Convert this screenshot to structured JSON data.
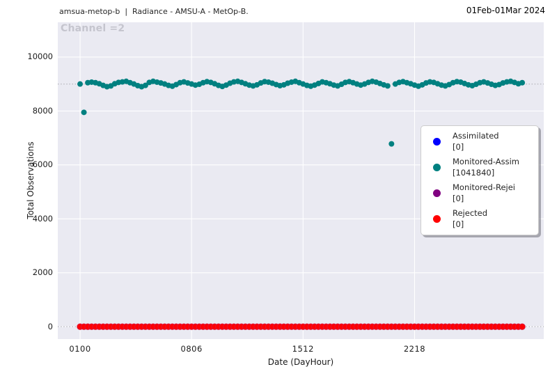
{
  "header": {
    "left": "amsua-metop-b  |  Radiance - AMSU-A - MetOp-B.",
    "right": "01Feb-01Mar 2024"
  },
  "title": "Channel =2",
  "colors": {
    "plot_background": "#eaeaf2",
    "gridline": "#ffffff",
    "reference_line": "#b9b9c0",
    "title_gray": "#c5c5ce",
    "assimilated_blue": "#0000ff",
    "monitored_assim_teal": "#008080",
    "monitored_rejected_purple": "#800080",
    "rejected_red": "#ff0000",
    "rejected_edge": "#dc143c"
  },
  "legend": {
    "entries": [
      {
        "label": "Assimilated",
        "count": "[0]",
        "color": "#0000ff"
      },
      {
        "label": "Monitored-Assim",
        "count": "[1041840]",
        "color": "#008080"
      },
      {
        "label": "Monitored-Rejei",
        "count": "[0]",
        "color": "#800080"
      },
      {
        "label": "Rejected",
        "count": "[0]",
        "color": "#ff0000"
      }
    ]
  },
  "chart_data": {
    "type": "scatter",
    "title": "Channel =2",
    "xlabel": "Date (DayHour)",
    "ylabel": "Total Observations",
    "n_points": 116,
    "x_tick_labels": [
      "0100",
      "0806",
      "1512",
      "2218"
    ],
    "x_ticks_index": [
      0,
      29,
      58,
      87
    ],
    "y_ticks": [
      0,
      2000,
      4000,
      6000,
      8000,
      10000
    ],
    "xlim_index": [
      -5.8,
      120.6
    ],
    "ylim": [
      -460,
      11290
    ],
    "grid": true,
    "legend_position": "center-right",
    "reference_lines_dotted": [
      9000,
      0
    ],
    "series": [
      {
        "name": "Assimilated",
        "count": 0,
        "color": "#0000ff",
        "values": []
      },
      {
        "name": "Monitored-Assim",
        "count": 1041840,
        "color": "#008080",
        "values": [
          9000,
          7950,
          9050,
          9070,
          9050,
          9010,
          8950,
          8900,
          8930,
          9010,
          9060,
          9080,
          9100,
          9050,
          9000,
          8940,
          8900,
          8950,
          9060,
          9100,
          9070,
          9040,
          9000,
          8950,
          8920,
          8980,
          9050,
          9080,
          9040,
          9000,
          8960,
          8990,
          9050,
          9090,
          9060,
          9010,
          8950,
          8910,
          8960,
          9030,
          9080,
          9100,
          9060,
          9010,
          8960,
          8930,
          8970,
          9040,
          9090,
          9070,
          9030,
          8980,
          8940,
          8970,
          9030,
          9070,
          9100,
          9050,
          9000,
          8950,
          8920,
          8960,
          9020,
          9080,
          9050,
          9010,
          8960,
          8930,
          8990,
          9060,
          9090,
          9050,
          9000,
          8960,
          9000,
          9060,
          9100,
          9070,
          9020,
          8970,
          8930,
          6780,
          9000,
          9060,
          9090,
          9050,
          9010,
          8960,
          8920,
          8970,
          9040,
          9080,
          9060,
          9010,
          8960,
          8930,
          8980,
          9050,
          9090,
          9070,
          9020,
          8970,
          8940,
          8990,
          9050,
          9080,
          9040,
          8990,
          8950,
          8980,
          9040,
          9080,
          9100,
          9060,
          9010,
          9050
        ]
      },
      {
        "name": "Monitored-Rejei",
        "count": 0,
        "color": "#800080",
        "values": []
      },
      {
        "name": "Rejected",
        "count": 0,
        "color": "#ff0000",
        "edge_color": "#dc143c",
        "constant_value": 0
      }
    ]
  }
}
